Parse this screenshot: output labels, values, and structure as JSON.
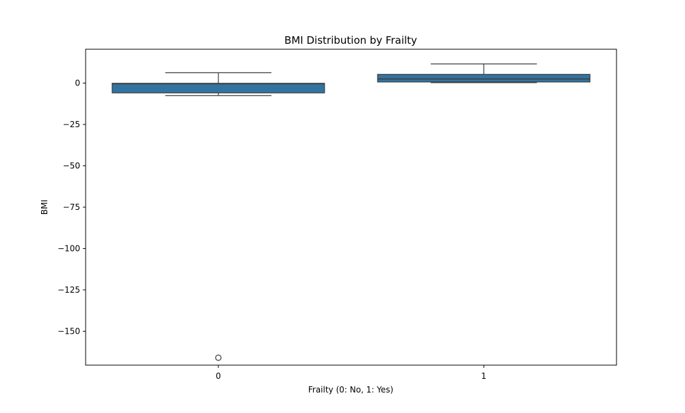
{
  "chart_data": {
    "type": "box",
    "title": "BMI Distribution by Frailty",
    "xlabel": "Frailty (0: No, 1: Yes)",
    "ylabel": "BMI",
    "categories": [
      "0",
      "1"
    ],
    "ylim": [
      -170.5,
      20.5
    ],
    "yticks": [
      0,
      -25,
      -50,
      -75,
      -100,
      -125,
      -150
    ],
    "ytick_labels": [
      "0",
      "−25",
      "−50",
      "−75",
      "−100",
      "−125",
      "−150"
    ],
    "grid": false,
    "box_color": "#3274a1",
    "line_color": "#3d3d3d",
    "boxes": [
      {
        "category": "0",
        "whisker_low": -7.5,
        "q1": -5.9,
        "median": -0.4,
        "q3": -0.1,
        "whisker_high": 6.3,
        "outliers": [
          -166
        ]
      },
      {
        "category": "1",
        "whisker_low": 0.3,
        "q1": 0.7,
        "median": 2.5,
        "q3": 5.3,
        "whisker_high": 11.6,
        "outliers": []
      }
    ]
  }
}
